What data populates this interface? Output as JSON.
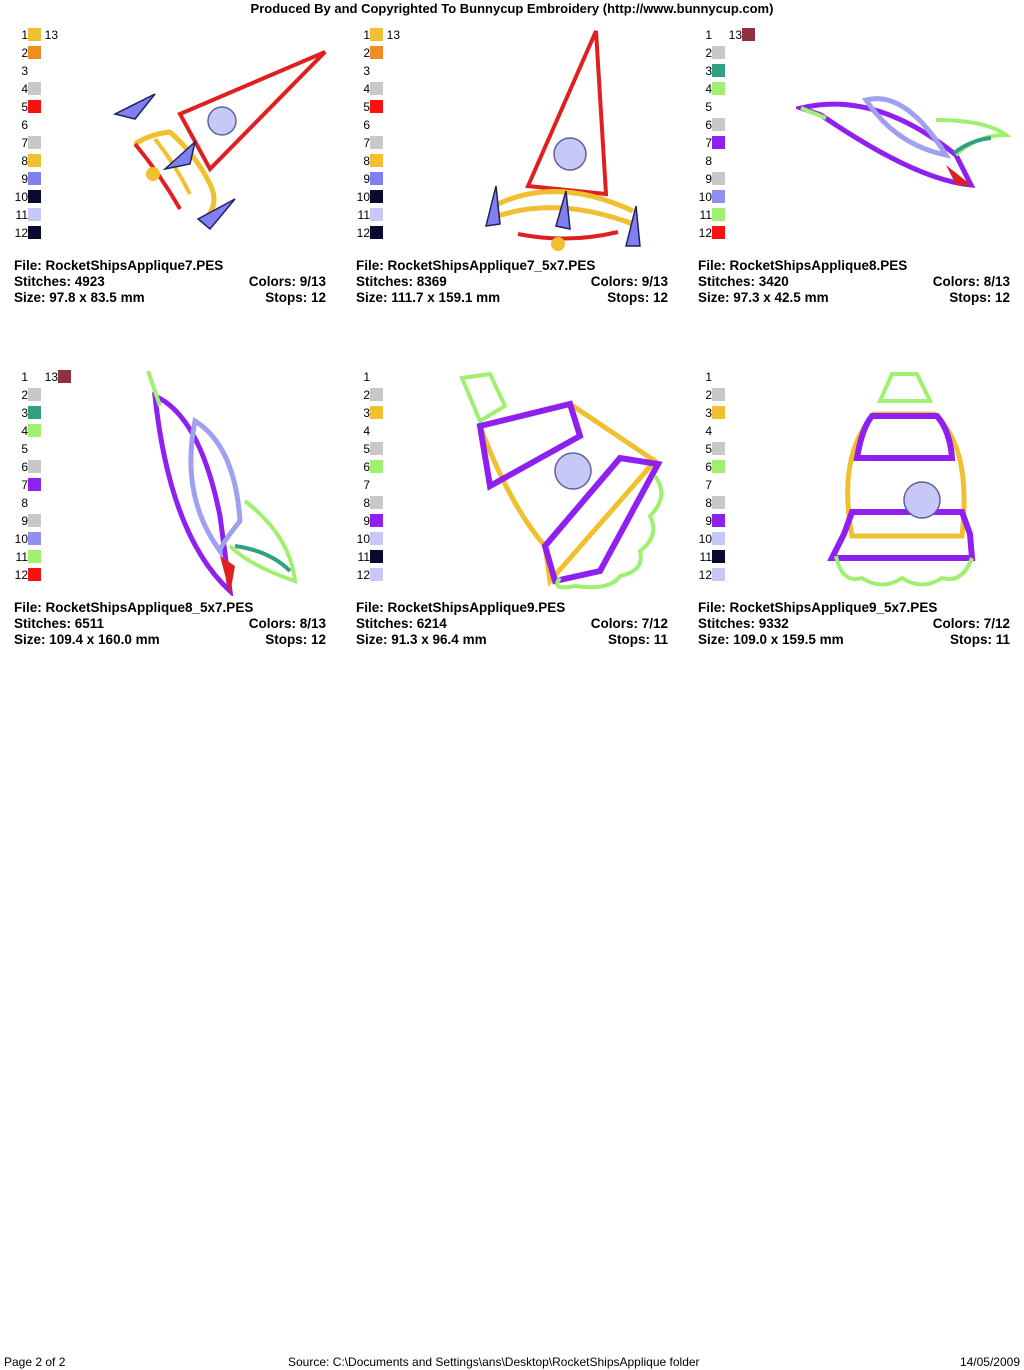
{
  "header": {
    "title": "Produced By and Copyrighted To Bunnycup Embroidery (http://www.bunnycup.com)"
  },
  "designs": [
    {
      "file_label": "File: RocketShipsApplique7.PES",
      "stitches_label": "Stitches: 4923",
      "colors_label": "Colors: 9/13",
      "size_label": "Size: 97.8 x 83.5 mm",
      "stops_label": "Stops: 12",
      "swatches": [
        {
          "n": "1",
          "color": "#f0c030"
        },
        {
          "n": "2",
          "color": "#f08c20"
        },
        {
          "n": "3",
          "color": ""
        },
        {
          "n": "4",
          "color": "#c8c8c8"
        },
        {
          "n": "5",
          "color": "#ff1010"
        },
        {
          "n": "6",
          "color": ""
        },
        {
          "n": "7",
          "color": "#c8c8c8"
        },
        {
          "n": "8",
          "color": "#f0c030"
        },
        {
          "n": "9",
          "color": "#8080f0"
        },
        {
          "n": "10",
          "color": "#0a0a30"
        },
        {
          "n": "11",
          "color": "#c8c8f8"
        },
        {
          "n": "12",
          "color": "#0a0a30"
        },
        {
          "n": "13",
          "color": ""
        }
      ],
      "icon": "rocket-tilted-icon"
    },
    {
      "file_label": "File: RocketShipsApplique7_5x7.PES",
      "stitches_label": "Stitches: 8369",
      "colors_label": "Colors: 9/13",
      "size_label": "Size: 111.7 x 159.1 mm",
      "stops_label": "Stops: 12",
      "swatches": [
        {
          "n": "1",
          "color": "#f0c030"
        },
        {
          "n": "2",
          "color": "#f08c20"
        },
        {
          "n": "3",
          "color": ""
        },
        {
          "n": "4",
          "color": "#c8c8c8"
        },
        {
          "n": "5",
          "color": "#ff1010"
        },
        {
          "n": "6",
          "color": ""
        },
        {
          "n": "7",
          "color": "#c8c8c8"
        },
        {
          "n": "8",
          "color": "#f0c030"
        },
        {
          "n": "9",
          "color": "#8080f0"
        },
        {
          "n": "10",
          "color": "#0a0a30"
        },
        {
          "n": "11",
          "color": "#c8c8f8"
        },
        {
          "n": "12",
          "color": "#0a0a30"
        },
        {
          "n": "13",
          "color": ""
        }
      ],
      "icon": "rocket-upright-icon"
    },
    {
      "file_label": "File: RocketShipsApplique8.PES",
      "stitches_label": "Stitches: 3420",
      "colors_label": "Colors: 8/13",
      "size_label": "Size: 97.3 x 42.5 mm",
      "stops_label": "Stops: 12",
      "swatches": [
        {
          "n": "1",
          "color": ""
        },
        {
          "n": "2",
          "color": "#c8c8c8"
        },
        {
          "n": "3",
          "color": "#30a080"
        },
        {
          "n": "4",
          "color": "#a0f070"
        },
        {
          "n": "5",
          "color": ""
        },
        {
          "n": "6",
          "color": "#c8c8c8"
        },
        {
          "n": "7",
          "color": "#9020f0"
        },
        {
          "n": "8",
          "color": ""
        },
        {
          "n": "9",
          "color": "#c8c8c8"
        },
        {
          "n": "10",
          "color": "#9090f0"
        },
        {
          "n": "11",
          "color": "#a0f070"
        },
        {
          "n": "12",
          "color": "#ff1010"
        },
        {
          "n": "13",
          "color": "#903040"
        }
      ],
      "icon": "rocket-sideways-icon"
    },
    {
      "file_label": "File: RocketShipsApplique8_5x7.PES",
      "stitches_label": "Stitches: 6511",
      "colors_label": "Colors: 8/13",
      "size_label": "Size: 109.4 x 160.0 mm",
      "stops_label": "Stops: 12",
      "swatches": [
        {
          "n": "1",
          "color": ""
        },
        {
          "n": "2",
          "color": "#c8c8c8"
        },
        {
          "n": "3",
          "color": "#30a080"
        },
        {
          "n": "4",
          "color": "#a0f070"
        },
        {
          "n": "5",
          "color": ""
        },
        {
          "n": "6",
          "color": "#c8c8c8"
        },
        {
          "n": "7",
          "color": "#9020f0"
        },
        {
          "n": "8",
          "color": ""
        },
        {
          "n": "9",
          "color": "#c8c8c8"
        },
        {
          "n": "10",
          "color": "#9090f0"
        },
        {
          "n": "11",
          "color": "#a0f070"
        },
        {
          "n": "12",
          "color": "#ff1010"
        },
        {
          "n": "13",
          "color": "#903040"
        }
      ],
      "icon": "rocket-diagonal-icon"
    },
    {
      "file_label": "File: RocketShipsApplique9.PES",
      "stitches_label": "Stitches: 6214",
      "colors_label": "Colors: 7/12",
      "size_label": "Size: 91.3 x 96.4 mm",
      "stops_label": "Stops: 11",
      "swatches": [
        {
          "n": "1",
          "color": ""
        },
        {
          "n": "2",
          "color": "#c8c8c8"
        },
        {
          "n": "3",
          "color": "#f0c030"
        },
        {
          "n": "4",
          "color": ""
        },
        {
          "n": "5",
          "color": "#c8c8c8"
        },
        {
          "n": "6",
          "color": "#a0f070"
        },
        {
          "n": "7",
          "color": ""
        },
        {
          "n": "8",
          "color": "#c8c8c8"
        },
        {
          "n": "9",
          "color": "#9020f0"
        },
        {
          "n": "10",
          "color": "#c8c8f8"
        },
        {
          "n": "11",
          "color": "#0a0a30"
        },
        {
          "n": "12",
          "color": "#c8c8f8"
        }
      ],
      "icon": "rocket-capsule-tilted-icon"
    },
    {
      "file_label": "File: RocketShipsApplique9_5x7.PES",
      "stitches_label": "Stitches: 9332",
      "colors_label": "Colors: 7/12",
      "size_label": "Size: 109.0 x 159.5 mm",
      "stops_label": "Stops: 11",
      "swatches": [
        {
          "n": "1",
          "color": ""
        },
        {
          "n": "2",
          "color": "#c8c8c8"
        },
        {
          "n": "3",
          "color": "#f0c030"
        },
        {
          "n": "4",
          "color": ""
        },
        {
          "n": "5",
          "color": "#c8c8c8"
        },
        {
          "n": "6",
          "color": "#a0f070"
        },
        {
          "n": "7",
          "color": ""
        },
        {
          "n": "8",
          "color": "#c8c8c8"
        },
        {
          "n": "9",
          "color": "#9020f0"
        },
        {
          "n": "10",
          "color": "#c8c8f8"
        },
        {
          "n": "11",
          "color": "#0a0a30"
        },
        {
          "n": "12",
          "color": "#c8c8f8"
        }
      ],
      "icon": "rocket-capsule-upright-icon"
    }
  ],
  "footer": {
    "page": "Page 2 of 2",
    "source": "Source: C:\\Documents and Settings\\ans\\Desktop\\RocketShipsApplique folder",
    "date": "14/05/2009"
  }
}
